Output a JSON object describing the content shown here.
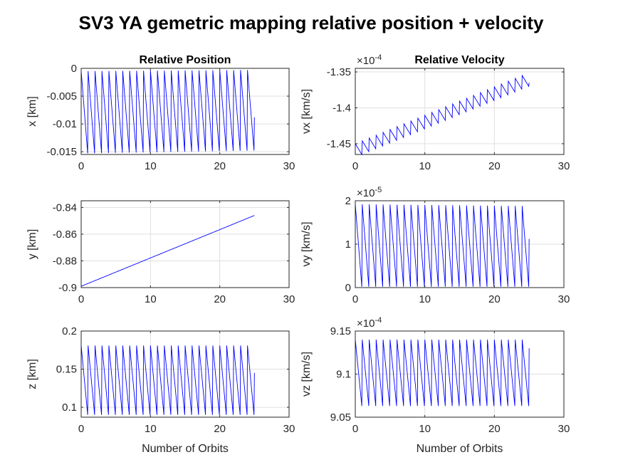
{
  "figure": {
    "title": "SV3 YA gemetric mapping relative position + velocity",
    "line_color": "#0000ff"
  },
  "chart_data": [
    {
      "type": "line",
      "id": "x",
      "title": "Relative Position",
      "xlabel": "",
      "ylabel": "x [km]",
      "xlim": [
        0,
        30
      ],
      "ylim": [
        -0.0155,
        0
      ],
      "xticks": [
        0,
        10,
        20,
        30
      ],
      "xtick_labels": [
        "0",
        "10",
        "20",
        "30"
      ],
      "yticks": [
        0,
        -0.005,
        -0.01,
        -0.015
      ],
      "ytick_labels": [
        "0",
        "-0.005",
        "-0.01",
        "-0.015"
      ],
      "exponent": "",
      "grid": true,
      "pattern": "sawtooth",
      "n_cycles": 25,
      "x_end": 25,
      "high_start": -0.0005,
      "high_end": -0.0003,
      "low_start": -0.0153,
      "low_end": -0.0148,
      "end_y": -0.0088
    },
    {
      "type": "line",
      "id": "vx",
      "title": "Relative Velocity",
      "xlabel": "",
      "ylabel": "vx [km/s]",
      "xlim": [
        0,
        30
      ],
      "ylim": [
        -1.465,
        -1.345
      ],
      "xticks": [
        0,
        10,
        20,
        30
      ],
      "xtick_labels": [
        "0",
        "10",
        "20",
        "30"
      ],
      "yticks": [
        -1.35,
        -1.4,
        -1.45
      ],
      "ytick_labels": [
        "-1.35",
        "-1.4",
        "-1.45"
      ],
      "exponent": "-4",
      "grid": true,
      "pattern": "sawtooth",
      "n_cycles": 25,
      "x_end": 25,
      "high_start": -1.45,
      "high_end": -1.355,
      "low_start": -1.465,
      "low_end": -1.37,
      "end_y": -1.365
    },
    {
      "type": "line",
      "id": "y",
      "title": "",
      "xlabel": "",
      "ylabel": "y [km]",
      "xlim": [
        0,
        30
      ],
      "ylim": [
        -0.9,
        -0.835
      ],
      "xticks": [
        0,
        10,
        20,
        30
      ],
      "xtick_labels": [
        "0",
        "10",
        "20",
        "30"
      ],
      "yticks": [
        -0.84,
        -0.86,
        -0.88,
        -0.9
      ],
      "ytick_labels": [
        "-0.84",
        "-0.86",
        "-0.88",
        "-0.9"
      ],
      "exponent": "",
      "grid": true,
      "pattern": "linear",
      "x_end": 25,
      "y_start": -0.899,
      "y_end": -0.846
    },
    {
      "type": "line",
      "id": "vy",
      "title": "",
      "xlabel": "",
      "ylabel": "vy [km/s]",
      "xlim": [
        0,
        30
      ],
      "ylim": [
        0,
        2
      ],
      "xticks": [
        0,
        10,
        20,
        30
      ],
      "xtick_labels": [
        "0",
        "10",
        "20",
        "30"
      ],
      "yticks": [
        2,
        1,
        0
      ],
      "ytick_labels": [
        "2",
        "1",
        "0"
      ],
      "exponent": "-5",
      "grid": true,
      "pattern": "sawtooth",
      "n_cycles": 25,
      "x_end": 25,
      "high_start": 1.92,
      "high_end": 1.88,
      "low_start": 0.02,
      "low_end": 0.02,
      "end_y": 1.12
    },
    {
      "type": "line",
      "id": "z",
      "title": "",
      "xlabel": "Number of Orbits",
      "ylabel": "z [km]",
      "xlim": [
        0,
        30
      ],
      "ylim": [
        0.087,
        0.2
      ],
      "xticks": [
        0,
        10,
        20,
        30
      ],
      "xtick_labels": [
        "0",
        "10",
        "20",
        "30"
      ],
      "yticks": [
        0.2,
        0.15,
        0.1
      ],
      "ytick_labels": [
        "0.2",
        "0.15",
        "0.1"
      ],
      "exponent": "",
      "grid": true,
      "pattern": "sawtooth",
      "n_cycles": 25,
      "x_end": 25,
      "high_start": 0.181,
      "high_end": 0.181,
      "low_start": 0.09,
      "low_end": 0.09,
      "end_y": 0.145
    },
    {
      "type": "line",
      "id": "vz",
      "title": "",
      "xlabel": "Number of Orbits",
      "ylabel": "vz [km/s]",
      "xlim": [
        0,
        30
      ],
      "ylim": [
        9.05,
        9.15
      ],
      "xticks": [
        0,
        10,
        20,
        30
      ],
      "xtick_labels": [
        "0",
        "10",
        "20",
        "30"
      ],
      "yticks": [
        9.15,
        9.1,
        9.05
      ],
      "ytick_labels": [
        "9.15",
        "9.1",
        "9.05"
      ],
      "exponent": "-4",
      "grid": true,
      "pattern": "sawtooth",
      "n_cycles": 25,
      "x_end": 25,
      "high_start": 9.14,
      "high_end": 9.14,
      "low_start": 9.063,
      "low_end": 9.063,
      "end_y": 9.13
    }
  ]
}
